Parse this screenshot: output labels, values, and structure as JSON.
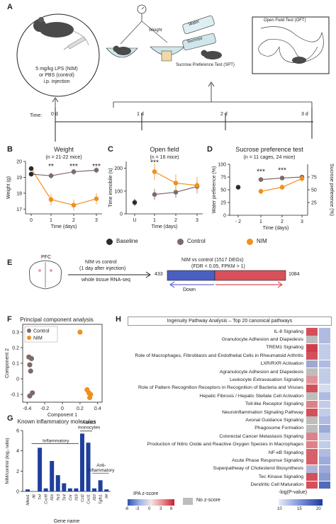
{
  "panels": {
    "A": "A",
    "B": "B",
    "C": "C",
    "D": "D",
    "E": "E",
    "F": "F",
    "G": "G",
    "H": "H"
  },
  "panelA": {
    "injection_text": [
      "5 mg/kg LPS (NIM)",
      "or PBS (control)",
      "i.p. injection"
    ],
    "weight_label": "Weight",
    "water_label": "Water",
    "sucrose_label": "Sucrose",
    "spt_label": "Sucrose Preference Test (SPT)",
    "oft_label": "Open Field Test (OFT)",
    "time_label": "Time:",
    "timepoints": [
      "0 d",
      "1 d",
      "2 d",
      "3 d"
    ]
  },
  "legend": [
    {
      "label": "Baseline",
      "color": "#2b2b2b"
    },
    {
      "label": "Control",
      "color": "#7d6a6a"
    },
    {
      "label": "NIM",
      "color": "#f0901e"
    }
  ],
  "colors": {
    "baseline": "#2b2b2b",
    "control": "#7d6a6a",
    "nim": "#f0901e",
    "down": "#6a6ad6",
    "up": "#e0505a"
  },
  "chart_data": [
    {
      "type": "line",
      "title": "Weight",
      "subtitle": "(n = 21-22 mice)",
      "xlabel": "Time (days)",
      "ylabel": "Weight (g)",
      "x": [
        0,
        1,
        2,
        3
      ],
      "ylim": [
        16.7,
        20
      ],
      "yticks": [
        17,
        18,
        19,
        20
      ],
      "series": [
        {
          "name": "Control",
          "y": [
            19.2,
            19.1,
            19.35,
            19.45
          ]
        },
        {
          "name": "NIM",
          "y": [
            19.55,
            17.6,
            17.25,
            17.65
          ]
        }
      ],
      "baseline_points": [
        19.55,
        19.2
      ],
      "significance": [
        "**",
        "***",
        "***"
      ]
    },
    {
      "type": "line",
      "title": "Open field",
      "subtitle": "(n = 16 mice)",
      "xlabel": "Time (days)",
      "ylabel": "Time immobile (s)",
      "xticklabels": [
        "U",
        "1",
        "2",
        "3"
      ],
      "ylim": [
        0,
        230
      ],
      "yticks": [
        0,
        100,
        200
      ],
      "baseline": 50,
      "series": [
        {
          "name": "Control",
          "y": [
            85,
            95,
            120
          ]
        },
        {
          "name": "NIM",
          "y": [
            185,
            135,
            125
          ]
        }
      ],
      "significance": [
        "***"
      ]
    },
    {
      "type": "line",
      "title": "Sucrose preference test",
      "subtitle": "(n = 11 cages, 24 mice)",
      "xlabel": "Time (days)",
      "ylabel": "Water preference (%)",
      "ylabel_right": "Sucrose preference (%)",
      "xticklabels": [
        "- 2",
        "1",
        "2",
        "3"
      ],
      "ylim": [
        0,
        100
      ],
      "yticks": [
        0,
        25,
        50,
        75,
        100
      ],
      "yticks_right": [
        25,
        50,
        75
      ],
      "baseline": 55,
      "series": [
        {
          "name": "Control",
          "y": [
            70,
            73,
            75
          ]
        },
        {
          "name": "NIM",
          "y": [
            47,
            55,
            72
          ]
        }
      ],
      "significance": [
        "***",
        "***"
      ]
    },
    {
      "type": "scatter",
      "title": "Principal component analysis",
      "xlabel": "Component 1",
      "ylabel": "Component 2",
      "xticks": [
        -0.4,
        -0.2,
        0,
        0.2,
        0.4
      ],
      "yticks": [
        -0.1,
        0,
        0.1,
        0.2,
        0.3
      ],
      "series": [
        {
          "name": "Control",
          "points": [
            [
              -0.38,
              0.14
            ],
            [
              -0.35,
              0.13
            ],
            [
              -0.37,
              0.09
            ],
            [
              -0.36,
              0.05
            ],
            [
              -0.34,
              -0.09
            ],
            [
              -0.37,
              -0.11
            ]
          ]
        },
        {
          "name": "NIM",
          "points": [
            [
              0.2,
              0.3
            ],
            [
              0.28,
              -0.07
            ],
            [
              0.3,
              -0.09
            ],
            [
              0.32,
              -0.1
            ],
            [
              0.31,
              -0.12
            ]
          ]
        }
      ]
    },
    {
      "type": "bar",
      "title": "Known inflammatory molecules",
      "xlabel": "Gene name",
      "ylabel": "NIM/control (log₂ ratio)",
      "categories": [
        "Nfkbi1",
        "Il6",
        "Tnf",
        "Cxcl9",
        "Il1b",
        "Tlr3",
        "Tlr4",
        "Cnr",
        "Il18",
        "Ccl2",
        "Cxcl1",
        "Il10",
        "Tgfb1",
        "Il4"
      ],
      "values": [
        0.2,
        0,
        4.3,
        0.3,
        3,
        1.6,
        0.8,
        0.3,
        0.3,
        5.7,
        4.8,
        0.3,
        1.1,
        0.2
      ],
      "ylim": [
        0,
        6
      ],
      "yticks": [
        0,
        2,
        4,
        6
      ],
      "groups": [
        "Inflammatory",
        "Attract monocytes",
        "Anti-inflammatory"
      ]
    },
    {
      "type": "heatmap",
      "title": "Ingenuity Pathway Analysis – Top 20 canonical pathways",
      "rows": [
        "IL-8 Signaling",
        "Granulocyte Adhesion and Diapedesis",
        "TREM1 Signaling",
        "Role of Macrophages, Fibroblasts and Endothelial Cells in Rheumatoid Arthritis",
        "LXR/RXR Activation",
        "Agranulocyte Adhesion and Diapedesis",
        "Leukocyte Extravasation Signaling",
        "Role of Pattern Recognition Receptors in Recognition of Bacteria and Viruses",
        "Hepatic Fibrosis / Hepatic Stellate Cell Activation",
        "Toll-like Receptor Signaling",
        "Neuroinflammation Signaling Pathway",
        "Axonal Guidance Signaling",
        "Phagosome Formation",
        "Colorectal Cancer Metastasis Signaling",
        "Production of Nitric Oxide and Reactive Oxygen Species in Macrophages",
        "NF-κB Signaling",
        "Acute Phase Response Signaling",
        "Superpathway of Cholesterol Biosynthesis",
        "Tec Kinase Signaling",
        "Dendritic Cell Maturation"
      ],
      "zscore": [
        4.5,
        null,
        5,
        4.5,
        -2.5,
        null,
        2.5,
        4.5,
        null,
        3,
        4.5,
        null,
        null,
        3,
        3,
        4,
        4,
        -2,
        4.5,
        4.5
      ],
      "neglogp": [
        12,
        12,
        11,
        11,
        12,
        11,
        11,
        10,
        12,
        11,
        11,
        12,
        13,
        11,
        11,
        12,
        13,
        13,
        14,
        17
      ],
      "zscore_legend": {
        "title": "IPA z-score",
        "ticks": [
          -6,
          -3,
          0,
          3,
          6
        ]
      },
      "nz_legend": "No z-score",
      "p_legend": {
        "title": "-log(P-value)",
        "ticks": [
          10,
          15,
          20
        ]
      }
    }
  ],
  "panelE": {
    "pfc_label": "PFC",
    "arrow_top": "NIM vs control",
    "arrow_mid": "(1 day after injection)",
    "arrow_bottom": "whole tissue RNA-seq",
    "deg_title": "NIM vs control (1517 DEGs)",
    "deg_sub": "(FDR < 0.05, FPKM > 1)",
    "down_count": "433",
    "up_count": "1084",
    "down_label": "Down",
    "up_label": "Up"
  },
  "panelF_legend": [
    "Control",
    "NIM"
  ]
}
